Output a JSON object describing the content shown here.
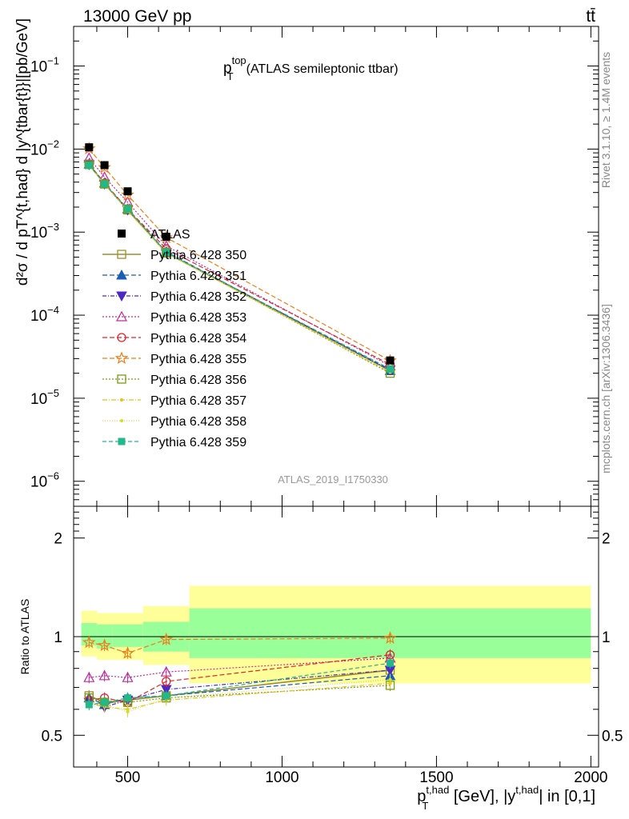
{
  "header": {
    "energy_label": "13000 GeV pp",
    "process_label": "tt̄"
  },
  "side": {
    "rivet": "Rivet 3.1.10, ≥ 1.4M events",
    "mcplots": "mcplots.cern.ch [arXiv:1306.3436]"
  },
  "chart_data": [
    {
      "type": "scatter",
      "title_main": "p",
      "title_sup": "top",
      "title_sub": "T",
      "title_rest": "(ATLAS semileptonic ttbar)",
      "analysis_tag": "ATLAS_2019_I1750330",
      "ylabel": "d²σ / d pT^{t,had} d |y^{tbar{t}}|[pb/GeV]",
      "yscale": "log",
      "ylim": [
        5e-07,
        0.3
      ],
      "xlim": [
        325,
        2025
      ],
      "y_ticklabels": [
        "10",
        "10",
        "10",
        "10",
        "10",
        "10"
      ],
      "y_tick_exponents": [
        "−1",
        "−2",
        "−3",
        "−4",
        "−5",
        "−6"
      ],
      "legend_position": "left-center",
      "x": [
        375,
        425,
        500,
        625,
        1350
      ],
      "x_bin_edges": [
        350,
        400,
        450,
        550,
        700,
        2000
      ],
      "data_series": {
        "name": "ATLAS",
        "values": [
          0.0105,
          0.0064,
          0.0031,
          0.00088,
          2.85e-05
        ]
      },
      "series": [
        {
          "name": "Pythia 6.428 350",
          "color": "#9a8f2e",
          "marker": "open-square",
          "dash": "solid",
          "values": [
            0.0066,
            0.0038,
            0.00185,
            0.00056,
            2.15e-05
          ]
        },
        {
          "name": "Pythia 6.428 351",
          "color": "#1a5cb8",
          "marker": "filled-triangle-up",
          "dash": "6,3",
          "values": [
            0.0066,
            0.0039,
            0.0019,
            0.00058,
            2.15e-05
          ]
        },
        {
          "name": "Pythia 6.428 352",
          "color": "#4b2ac4",
          "marker": "filled-triangle-down",
          "dash": "5,2,1,2",
          "values": [
            0.0065,
            0.0038,
            0.00185,
            0.00057,
            2.2e-05
          ]
        },
        {
          "name": "Pythia 6.428 353",
          "color": "#c22a9b",
          "marker": "open-triangle-up",
          "dash": "2,2",
          "values": [
            0.0078,
            0.0046,
            0.0023,
            0.00068,
            2.45e-05
          ]
        },
        {
          "name": "Pythia 6.428 354",
          "color": "#e0242d",
          "marker": "open-circle",
          "dash": "6,3",
          "values": [
            0.0066,
            0.0039,
            0.0019,
            0.00063,
            2.55e-05
          ]
        },
        {
          "name": "Pythia 6.428 355",
          "color": "#f07d18",
          "marker": "open-star",
          "dash": "6,3",
          "values": [
            0.0101,
            0.006,
            0.0028,
            0.00086,
            2.83e-05
          ]
        },
        {
          "name": "Pythia 6.428 356",
          "color": "#7a9b13",
          "marker": "open-square",
          "dash": "2,2",
          "values": [
            0.0065,
            0.0038,
            0.0019,
            0.00057,
            2e-05
          ]
        },
        {
          "name": "Pythia 6.428 357",
          "color": "#e8c21e",
          "marker": "small-dot",
          "dash": "6,2,1,2",
          "values": [
            0.0064,
            0.0038,
            0.0018,
            0.00056,
            2.05e-05
          ]
        },
        {
          "name": "Pythia 6.428 358",
          "color": "#cfe02a",
          "marker": "small-dot",
          "dash": "1,2",
          "values": [
            0.0063,
            0.0038,
            0.0018,
            0.00056,
            2.1e-05
          ]
        },
        {
          "name": "Pythia 6.428 359",
          "color": "#21b88a",
          "marker": "filled-square",
          "dash": "5,3",
          "values": [
            0.0064,
            0.0038,
            0.0019,
            0.00057,
            2.25e-05
          ]
        }
      ]
    },
    {
      "type": "scatter",
      "ylabel": "Ratio to ATLAS",
      "yscale": "log",
      "ylim": [
        0.4,
        2.5
      ],
      "xlim": [
        325,
        2025
      ],
      "y_ticklabels": [
        "2",
        "1",
        "0.5"
      ],
      "y_ticks": [
        2,
        1,
        0.5
      ],
      "x_ticklabels": [
        "500",
        "1000",
        "1500",
        "2000"
      ],
      "x_ticks": [
        500,
        1000,
        1500,
        2000
      ],
      "xlabel_main": "p",
      "xlabel_sup": "t,had",
      "xlabel_sub": "T",
      "xlabel_rest1": " [GeV], |y",
      "xlabel_sup2": "t,had",
      "xlabel_rest2": "| in [0,1]",
      "band_colors": {
        "inner": "#99ff99",
        "outer": "#ffff99"
      },
      "bands": [
        {
          "x0": 350,
          "x1": 400,
          "inner": [
            0.94,
            1.1
          ],
          "outer": [
            0.87,
            1.2
          ]
        },
        {
          "x0": 400,
          "x1": 450,
          "inner": [
            0.92,
            1.09
          ],
          "outer": [
            0.85,
            1.18
          ]
        },
        {
          "x0": 450,
          "x1": 550,
          "inner": [
            0.93,
            1.09
          ],
          "outer": [
            0.85,
            1.18
          ]
        },
        {
          "x0": 550,
          "x1": 700,
          "inner": [
            0.9,
            1.11
          ],
          "outer": [
            0.82,
            1.24
          ]
        },
        {
          "x0": 700,
          "x1": 2000,
          "inner": [
            0.86,
            1.22
          ],
          "outer": [
            0.72,
            1.43
          ]
        }
      ],
      "x": [
        375,
        425,
        500,
        625,
        1350
      ],
      "series": [
        {
          "name": "Pythia 6.428 350",
          "values": [
            0.66,
            0.63,
            0.64,
            0.66,
            0.79
          ]
        },
        {
          "name": "Pythia 6.428 351",
          "values": [
            0.65,
            0.62,
            0.65,
            0.66,
            0.76
          ]
        },
        {
          "name": "Pythia 6.428 352",
          "values": [
            0.63,
            0.61,
            0.64,
            0.69,
            0.79
          ]
        },
        {
          "name": "Pythia 6.428 353",
          "values": [
            0.75,
            0.76,
            0.75,
            0.78,
            0.86
          ]
        },
        {
          "name": "Pythia 6.428 354",
          "values": [
            0.64,
            0.65,
            0.63,
            0.73,
            0.88
          ]
        },
        {
          "name": "Pythia 6.428 355",
          "values": [
            0.96,
            0.94,
            0.89,
            0.98,
            0.99
          ]
        },
        {
          "name": "Pythia 6.428 356",
          "values": [
            0.65,
            0.63,
            0.63,
            0.65,
            0.71
          ]
        },
        {
          "name": "Pythia 6.428 357",
          "values": [
            0.63,
            0.61,
            0.6,
            0.64,
            0.72
          ]
        },
        {
          "name": "Pythia 6.428 358",
          "values": [
            0.62,
            0.62,
            0.59,
            0.65,
            0.74
          ]
        },
        {
          "name": "Pythia 6.428 359",
          "values": [
            0.62,
            0.63,
            0.65,
            0.66,
            0.83
          ]
        }
      ]
    }
  ]
}
